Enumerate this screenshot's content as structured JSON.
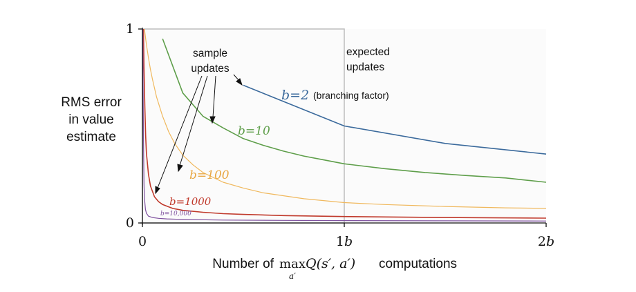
{
  "chart_data": {
    "type": "line",
    "ylabel": [
      "RMS error",
      "in value",
      "estimate"
    ],
    "xlabel": {
      "prefix": "Number of",
      "op": "max",
      "op_sub": "a′",
      "func": "Q(s′, a′)",
      "suffix": "computations"
    },
    "xlim": [
      0,
      2
    ],
    "ylim": [
      0,
      1
    ],
    "x_ticks": [
      {
        "value": 0,
        "label": "0"
      },
      {
        "value": 1,
        "label": "1b"
      },
      {
        "value": 2,
        "label": "2b"
      }
    ],
    "y_ticks": [
      {
        "value": 0,
        "label": "0"
      },
      {
        "value": 1,
        "label": "1"
      }
    ],
    "annotations": {
      "sample_updates": [
        "sample",
        "updates"
      ],
      "expected_updates": [
        "expected",
        "updates"
      ],
      "branching_factor": "(branching factor)"
    },
    "series": [
      {
        "name": "b=2",
        "label": "b=2",
        "color": "#3b6a9c",
        "x": [
          0.5,
          1.0,
          1.5,
          2.0
        ],
        "values": [
          0.71,
          0.5,
          0.41,
          0.355
        ]
      },
      {
        "name": "b=10",
        "label": "b=10",
        "color": "#5e9e4a",
        "x": [
          0.1,
          0.2,
          0.3,
          0.4,
          0.5,
          0.6,
          0.7,
          0.8,
          0.9,
          1.0,
          1.2,
          1.4,
          1.6,
          1.8,
          2.0
        ],
        "values": [
          0.95,
          0.67,
          0.55,
          0.49,
          0.435,
          0.4,
          0.37,
          0.345,
          0.325,
          0.305,
          0.28,
          0.26,
          0.245,
          0.232,
          0.21
        ]
      },
      {
        "name": "b=100",
        "label": "b=100",
        "color": "#f0b85d",
        "x": [
          0.01,
          0.02,
          0.03,
          0.04,
          0.05,
          0.07,
          0.1,
          0.13,
          0.16,
          0.2,
          0.25,
          0.3,
          0.4,
          0.5,
          0.6,
          0.8,
          1.0,
          1.2,
          1.5,
          1.8,
          2.0
        ],
        "values": [
          1.0,
          0.92,
          0.85,
          0.79,
          0.74,
          0.65,
          0.55,
          0.47,
          0.41,
          0.35,
          0.3,
          0.26,
          0.21,
          0.18,
          0.155,
          0.125,
          0.105,
          0.095,
          0.085,
          0.078,
          0.075
        ]
      },
      {
        "name": "b=1000",
        "label": "b=1000",
        "color": "#c0392b",
        "x": [
          0.005,
          0.008,
          0.012,
          0.016,
          0.02,
          0.03,
          0.04,
          0.06,
          0.08,
          0.1,
          0.15,
          0.2,
          0.3,
          0.4,
          0.5,
          0.7,
          1.0,
          1.5,
          2.0
        ],
        "values": [
          1.0,
          0.8,
          0.6,
          0.45,
          0.36,
          0.25,
          0.19,
          0.135,
          0.11,
          0.095,
          0.075,
          0.065,
          0.055,
          0.048,
          0.044,
          0.038,
          0.033,
          0.028,
          0.025
        ]
      },
      {
        "name": "b=10,000",
        "label": "b=10,000",
        "color": "#7d4f9e",
        "x": [
          0.002,
          0.004,
          0.006,
          0.008,
          0.01,
          0.015,
          0.02,
          0.03,
          0.05,
          0.08,
          0.12,
          0.2,
          0.4,
          0.7,
          1.0,
          1.5,
          2.0
        ],
        "values": [
          1.0,
          0.6,
          0.35,
          0.2,
          0.13,
          0.07,
          0.05,
          0.035,
          0.028,
          0.024,
          0.021,
          0.018,
          0.015,
          0.013,
          0.012,
          0.011,
          0.01
        ]
      }
    ]
  }
}
